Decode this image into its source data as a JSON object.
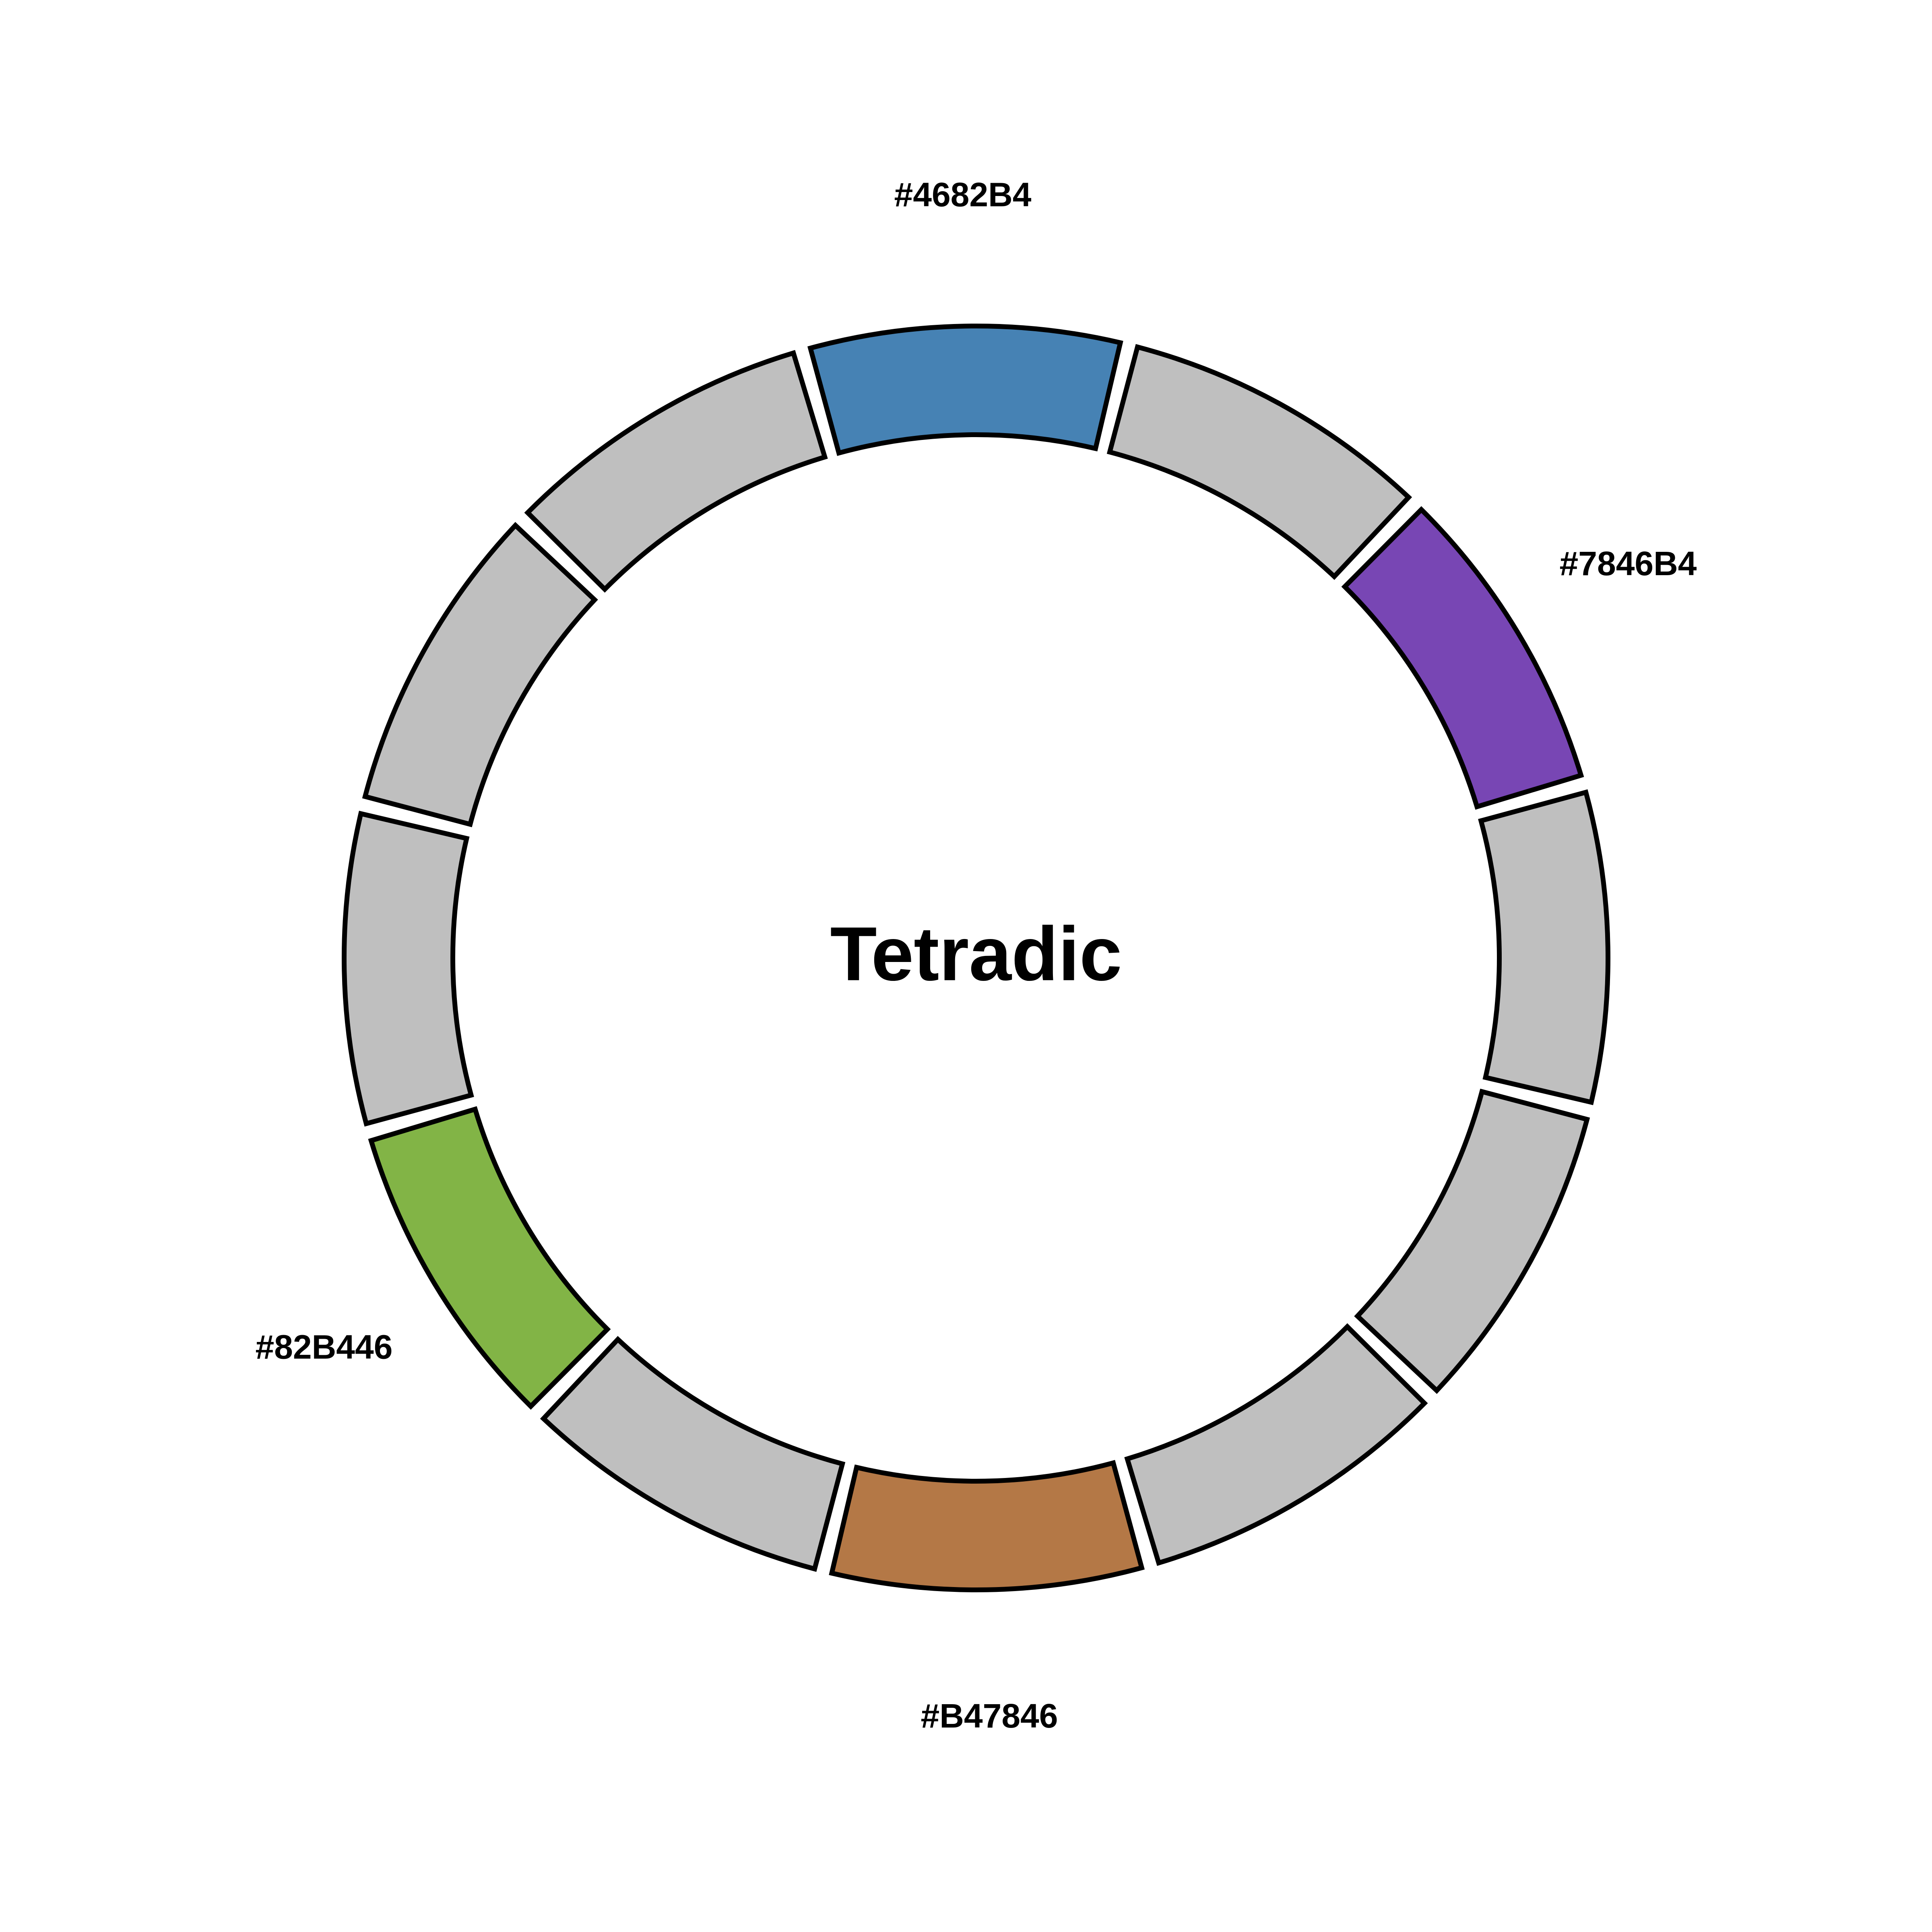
{
  "title": "Tetradic",
  "segment_count": 12,
  "inactive_color": "#BFBFBF",
  "outline_color": "#000000",
  "highlighted": [
    {
      "index": 0,
      "color": "#4682B4",
      "label": "#4682B4"
    },
    {
      "index": 2,
      "color": "#7846B4",
      "label": "#7846B4"
    },
    {
      "index": 6,
      "color": "#B47846",
      "label": "#B47846"
    },
    {
      "index": 8,
      "color": "#82B446",
      "label": "#82B446"
    }
  ]
}
